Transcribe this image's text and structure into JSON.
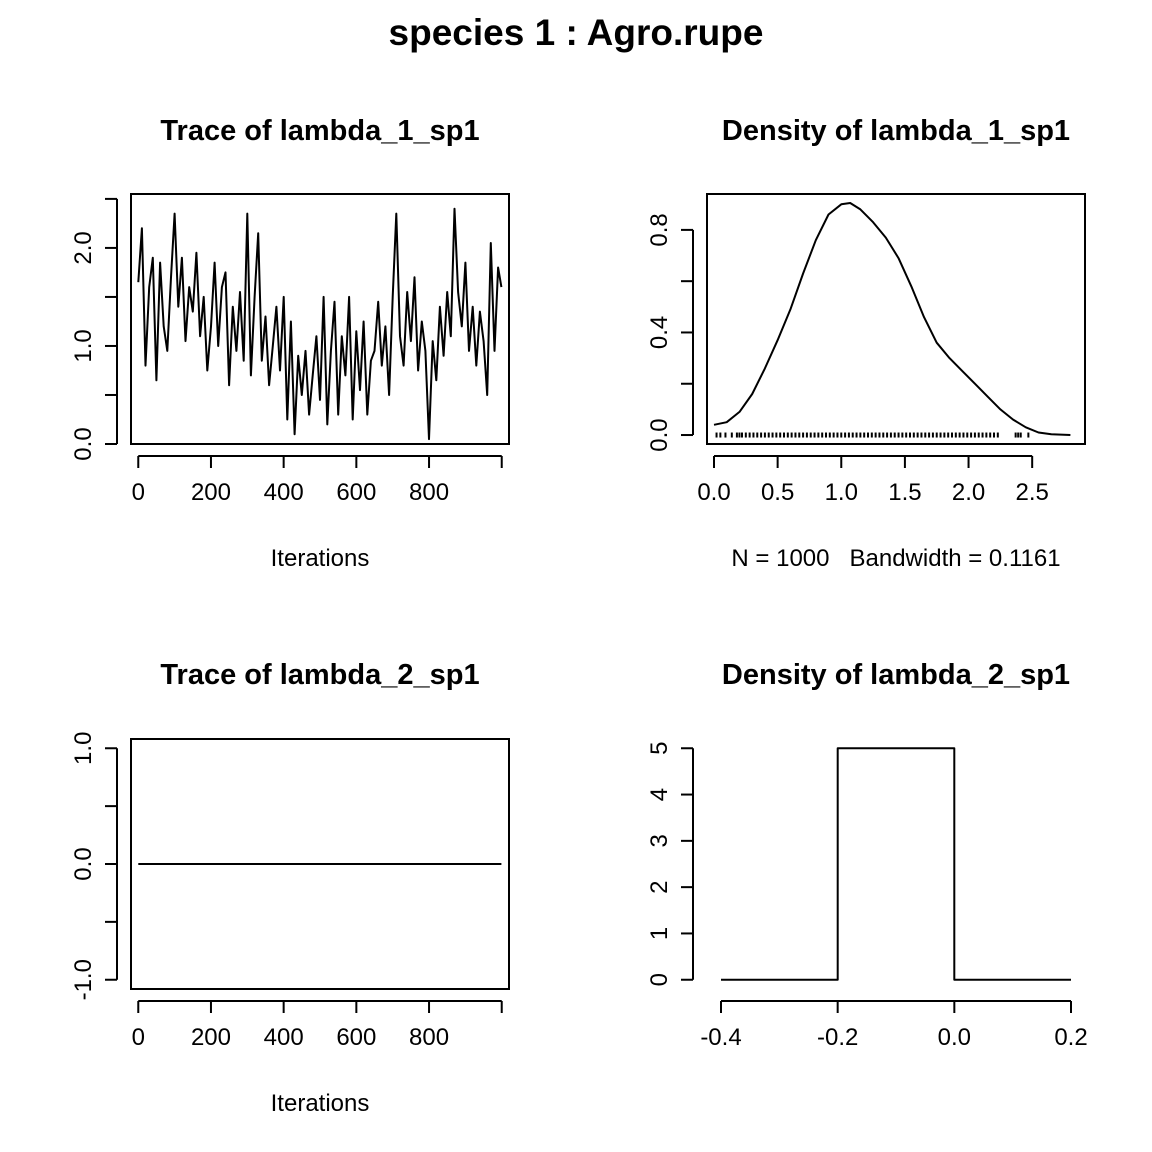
{
  "figure_title": "species 1 : Agro.rupe",
  "chart_data": [
    {
      "id": "trace1",
      "type": "line",
      "title": "Trace of lambda_1_sp1",
      "xlabel": "Iterations",
      "ylabel": "",
      "xlim": [
        -20,
        1020
      ],
      "ylim": [
        0.0,
        2.55
      ],
      "xticks": [
        0,
        200,
        400,
        600,
        800,
        1000
      ],
      "xtick_labels": [
        "0",
        "200",
        "400",
        "600",
        "800",
        ""
      ],
      "yticks": [
        0.0,
        0.5,
        1.0,
        1.5,
        2.0,
        2.5
      ],
      "ytick_labels": [
        "0.0",
        "",
        "1.0",
        "",
        "2.0",
        ""
      ],
      "grid": false,
      "series": [
        {
          "x": [
            0,
            10,
            20,
            30,
            40,
            50,
            60,
            70,
            80,
            90,
            100,
            110,
            120,
            130,
            140,
            150,
            160,
            170,
            180,
            190,
            200,
            210,
            220,
            230,
            240,
            250,
            260,
            270,
            280,
            290,
            300,
            310,
            320,
            330,
            340,
            350,
            360,
            370,
            380,
            390,
            400,
            410,
            420,
            430,
            440,
            450,
            460,
            470,
            480,
            490,
            500,
            510,
            520,
            530,
            540,
            550,
            560,
            570,
            580,
            590,
            600,
            610,
            620,
            630,
            640,
            650,
            660,
            670,
            680,
            690,
            700,
            710,
            720,
            730,
            740,
            750,
            760,
            770,
            780,
            790,
            800,
            810,
            820,
            830,
            840,
            850,
            860,
            870,
            880,
            890,
            900,
            910,
            920,
            930,
            940,
            950,
            960,
            970,
            980,
            990,
            999
          ],
          "values": [
            1.65,
            2.2,
            0.8,
            1.6,
            1.9,
            0.65,
            1.85,
            1.2,
            0.95,
            1.7,
            2.35,
            1.4,
            1.9,
            1.05,
            1.6,
            1.35,
            1.95,
            1.1,
            1.5,
            0.75,
            1.2,
            1.85,
            1.0,
            1.6,
            1.75,
            0.6,
            1.4,
            0.95,
            1.55,
            0.85,
            2.35,
            0.7,
            1.5,
            2.15,
            0.85,
            1.3,
            0.6,
            1.0,
            1.4,
            0.75,
            1.5,
            0.25,
            1.25,
            0.1,
            0.9,
            0.5,
            0.95,
            0.3,
            0.7,
            1.1,
            0.45,
            1.5,
            0.2,
            0.95,
            1.45,
            0.3,
            1.1,
            0.7,
            1.5,
            0.25,
            1.15,
            0.55,
            1.25,
            0.3,
            0.85,
            0.95,
            1.45,
            0.8,
            1.2,
            0.5,
            1.5,
            2.35,
            1.1,
            0.8,
            1.55,
            1.05,
            1.7,
            0.75,
            1.25,
            0.95,
            0.05,
            1.05,
            0.65,
            1.4,
            0.9,
            1.55,
            1.1,
            2.4,
            1.55,
            1.2,
            1.85,
            0.95,
            1.4,
            0.8,
            1.35,
            1.05,
            0.5,
            2.05,
            0.95,
            1.8,
            1.6
          ]
        }
      ]
    },
    {
      "id": "density1",
      "type": "line",
      "title": "Density of lambda_1_sp1",
      "xlabel": "N = 1000   Bandwidth = 0.1161",
      "ylabel": "",
      "xlim": [
        -0.055,
        2.915
      ],
      "ylim": [
        -0.035,
        0.94
      ],
      "xticks": [
        0.0,
        0.5,
        1.0,
        1.5,
        2.0,
        2.5
      ],
      "xtick_labels": [
        "0.0",
        "0.5",
        "1.0",
        "1.5",
        "2.0",
        "2.5"
      ],
      "yticks": [
        0.0,
        0.2,
        0.4,
        0.6,
        0.8
      ],
      "ytick_labels": [
        "0.0",
        "",
        "0.4",
        "",
        "0.8"
      ],
      "grid": false,
      "series": [
        {
          "x": [
            0.0,
            0.1,
            0.2,
            0.3,
            0.4,
            0.5,
            0.6,
            0.7,
            0.8,
            0.9,
            1.0,
            1.07,
            1.15,
            1.25,
            1.35,
            1.45,
            1.55,
            1.65,
            1.75,
            1.85,
            1.95,
            2.05,
            2.15,
            2.25,
            2.35,
            2.45,
            2.55,
            2.65,
            2.8
          ],
          "values": [
            0.04,
            0.05,
            0.09,
            0.16,
            0.26,
            0.37,
            0.49,
            0.63,
            0.76,
            0.86,
            0.9,
            0.905,
            0.88,
            0.83,
            0.77,
            0.69,
            0.58,
            0.46,
            0.36,
            0.3,
            0.25,
            0.2,
            0.15,
            0.1,
            0.06,
            0.03,
            0.01,
            0.003,
            0.0
          ]
        }
      ],
      "rug": [
        0.02,
        0.05,
        0.09,
        0.14,
        0.18,
        0.2,
        0.22,
        0.25,
        0.28,
        0.31,
        0.34,
        0.37,
        0.4,
        0.43,
        0.46,
        0.49,
        0.52,
        0.55,
        0.58,
        0.61,
        0.64,
        0.67,
        0.7,
        0.73,
        0.76,
        0.79,
        0.82,
        0.85,
        0.88,
        0.91,
        0.94,
        0.97,
        1.0,
        1.03,
        1.06,
        1.09,
        1.12,
        1.15,
        1.18,
        1.21,
        1.24,
        1.27,
        1.3,
        1.33,
        1.36,
        1.39,
        1.42,
        1.45,
        1.48,
        1.51,
        1.54,
        1.57,
        1.6,
        1.63,
        1.66,
        1.69,
        1.72,
        1.75,
        1.78,
        1.81,
        1.84,
        1.87,
        1.9,
        1.93,
        1.96,
        1.99,
        2.02,
        2.05,
        2.08,
        2.11,
        2.14,
        2.17,
        2.2,
        2.23,
        2.37,
        2.39,
        2.41,
        2.47
      ]
    },
    {
      "id": "trace2",
      "type": "line",
      "title": "Trace of lambda_2_sp1",
      "xlabel": "Iterations",
      "ylabel": "",
      "xlim": [
        -20,
        1020
      ],
      "ylim": [
        -1.08,
        1.08
      ],
      "xticks": [
        0,
        200,
        400,
        600,
        800,
        1000
      ],
      "xtick_labels": [
        "0",
        "200",
        "400",
        "600",
        "800",
        ""
      ],
      "yticks": [
        -1.0,
        -0.5,
        0.0,
        0.5,
        1.0
      ],
      "ytick_labels": [
        "-1.0",
        "",
        "0.0",
        "",
        "1.0"
      ],
      "grid": false,
      "series": [
        {
          "x": [
            0,
            999
          ],
          "values": [
            0.0,
            0.0
          ]
        }
      ]
    },
    {
      "id": "density2",
      "type": "line",
      "title": "Density of lambda_2_sp1",
      "xlabel": "",
      "ylabel": "",
      "xlim": [
        -0.424,
        0.224
      ],
      "ylim": [
        -0.2,
        5.2
      ],
      "xticks": [
        -0.4,
        -0.2,
        0.0,
        0.2
      ],
      "xtick_labels": [
        "-0.4",
        "-0.2",
        "0.0",
        "0.2"
      ],
      "yticks": [
        0,
        1,
        2,
        3,
        4,
        5
      ],
      "ytick_labels": [
        "0",
        "1",
        "2",
        "3",
        "4",
        "5"
      ],
      "grid": false,
      "series": [
        {
          "x": [
            -0.4,
            -0.2,
            -0.2,
            0.0,
            0.0,
            0.2
          ],
          "values": [
            0,
            0,
            5,
            5,
            0,
            0
          ]
        }
      ]
    }
  ]
}
